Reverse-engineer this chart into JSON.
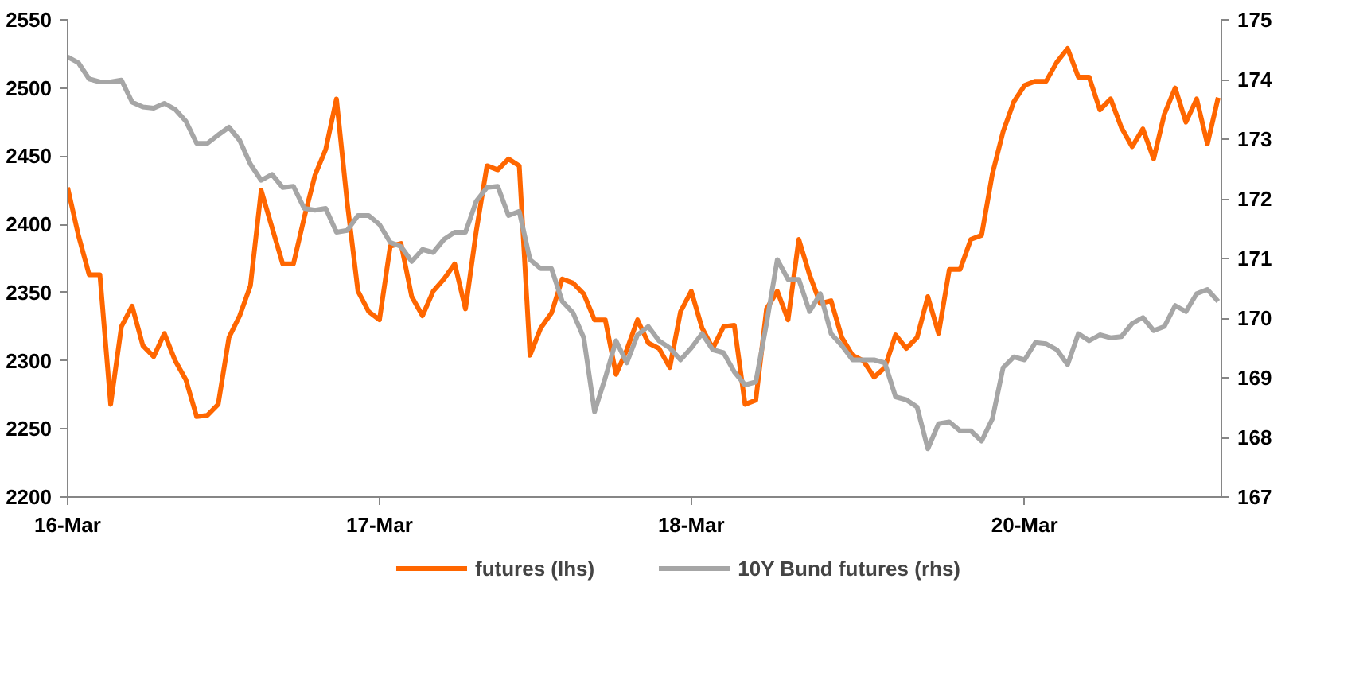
{
  "chart_data": {
    "type": "line",
    "categories": [
      "16-Mar",
      null,
      null,
      null,
      null,
      null,
      null,
      null,
      null,
      null,
      null,
      null,
      null,
      null,
      null,
      null,
      null,
      null,
      null,
      null,
      null,
      null,
      null,
      null,
      null,
      null,
      null,
      null,
      null,
      "17-Mar",
      null,
      null,
      null,
      null,
      null,
      null,
      null,
      null,
      null,
      null,
      null,
      null,
      null,
      null,
      null,
      null,
      null,
      null,
      null,
      null,
      null,
      null,
      null,
      null,
      null,
      null,
      null,
      null,
      "18-Mar",
      null,
      null,
      null,
      null,
      null,
      null,
      null,
      null,
      null,
      null,
      null,
      null,
      null,
      null,
      null,
      null,
      null,
      null,
      null,
      null,
      null,
      null,
      null,
      null,
      null,
      null,
      null,
      null,
      null,
      null,
      "20-Mar",
      null,
      null,
      null,
      null,
      null,
      null,
      null,
      null,
      null,
      null,
      null,
      null,
      null,
      null,
      null,
      null,
      null,
      null
    ],
    "ylim": [
      2200,
      2550
    ],
    "yticks": [
      2200,
      2250,
      2300,
      2350,
      2400,
      2450,
      2500,
      2550
    ],
    "y2lim": [
      167,
      175
    ],
    "y2ticks": [
      167,
      168,
      169,
      170,
      171,
      172,
      173,
      174,
      175
    ],
    "legend": "bottom",
    "line_style": "solid",
    "series": [
      {
        "name": "futures (lhs)",
        "color": "#ff6600",
        "values": [
          2427,
          2392,
          2363,
          2363,
          2268,
          2325,
          2340,
          2311,
          2303,
          2320,
          2300,
          2286,
          2259,
          2260,
          2268,
          2317,
          2333,
          2355,
          2425,
          2398,
          2371,
          2371,
          2405,
          2436,
          2455,
          2492,
          2416,
          2351,
          2336,
          2330,
          2384,
          2386,
          2347,
          2333,
          2351,
          2360,
          2371,
          2338,
          2395,
          2443,
          2440,
          2448,
          2443,
          2304,
          2324,
          2335,
          2360,
          2357,
          2349,
          2330,
          2330,
          2290,
          2308,
          2330,
          2313,
          2309,
          2295,
          2336,
          2351,
          2324,
          2309,
          2325,
          2326,
          2268,
          2271,
          2338,
          2351,
          2330,
          2389,
          2363,
          2342,
          2344,
          2317,
          2304,
          2300,
          2288,
          2295,
          2319,
          2309,
          2317,
          2347,
          2320,
          2367,
          2367,
          2389,
          2392,
          2437,
          2468,
          2490,
          2502,
          2505,
          2505,
          2519,
          2529,
          2508,
          2508,
          2484,
          2492,
          2471,
          2457,
          2470,
          2448,
          2481,
          2500,
          2475,
          2492,
          2459,
          2493
        ]
      },
      {
        "name": "10Y Bund futures (rhs)",
        "color": "#a6a6a6",
        "axis": "y2",
        "values": [
          174.38,
          174.28,
          174.01,
          173.96,
          173.96,
          173.99,
          173.62,
          173.54,
          173.52,
          173.6,
          173.5,
          173.3,
          172.93,
          172.93,
          173.07,
          173.2,
          172.98,
          172.58,
          172.31,
          172.41,
          172.19,
          172.21,
          171.84,
          171.81,
          171.84,
          171.44,
          171.47,
          171.72,
          171.72,
          171.57,
          171.27,
          171.2,
          170.95,
          171.15,
          171.1,
          171.32,
          171.44,
          171.44,
          171.96,
          172.19,
          172.21,
          171.72,
          171.79,
          170.98,
          170.83,
          170.83,
          170.28,
          170.09,
          169.67,
          168.43,
          169.0,
          169.62,
          169.25,
          169.72,
          169.86,
          169.62,
          169.5,
          169.3,
          169.5,
          169.74,
          169.47,
          169.42,
          169.1,
          168.88,
          168.93,
          169.91,
          170.98,
          170.65,
          170.65,
          170.11,
          170.41,
          169.74,
          169.54,
          169.3,
          169.3,
          169.3,
          169.25,
          168.68,
          168.63,
          168.51,
          167.81,
          168.23,
          168.26,
          168.11,
          168.11,
          167.94,
          168.31,
          169.17,
          169.35,
          169.3,
          169.59,
          169.57,
          169.47,
          169.22,
          169.74,
          169.62,
          169.72,
          169.67,
          169.69,
          169.91,
          170.01,
          169.79,
          169.86,
          170.21,
          170.11,
          170.41,
          170.48,
          170.28
        ]
      }
    ]
  }
}
